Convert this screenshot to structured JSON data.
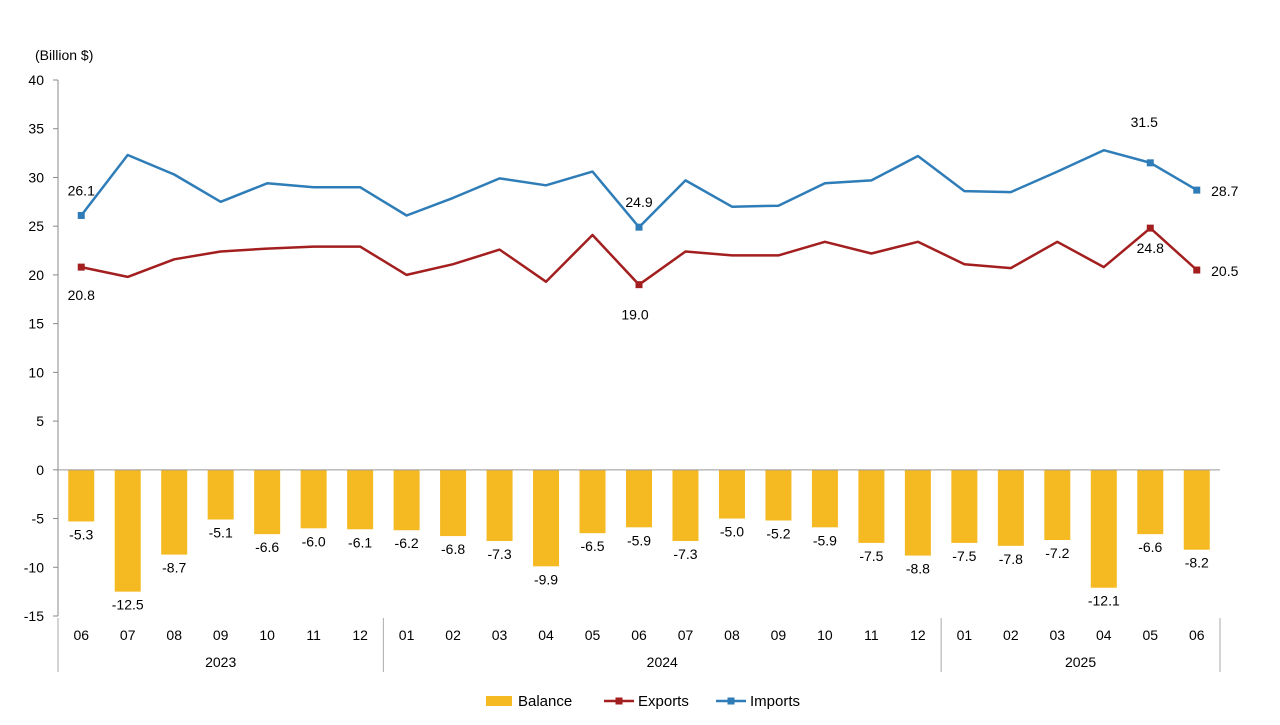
{
  "chart_data": {
    "type": "bar",
    "ylabel": "(Billion $)",
    "ylim": [
      -15,
      40
    ],
    "yticks": [
      40,
      35,
      30,
      25,
      20,
      15,
      10,
      5,
      0,
      -5,
      -10,
      -15
    ],
    "months": [
      "06",
      "07",
      "08",
      "09",
      "10",
      "11",
      "12",
      "01",
      "02",
      "03",
      "04",
      "05",
      "06",
      "07",
      "08",
      "09",
      "10",
      "11",
      "12",
      "01",
      "02",
      "03",
      "04",
      "05",
      "06"
    ],
    "years": [
      {
        "label": "2023",
        "start": 0,
        "end": 6
      },
      {
        "label": "2024",
        "start": 7,
        "end": 18
      },
      {
        "label": "2025",
        "start": 19,
        "end": 24
      }
    ],
    "series": [
      {
        "name": "Balance",
        "kind": "bar",
        "color": "#F5B922",
        "values": [
          -5.3,
          -12.5,
          -8.7,
          -5.1,
          -6.6,
          -6.0,
          -6.1,
          -6.2,
          -6.8,
          -7.3,
          -9.9,
          -6.5,
          -5.9,
          -7.3,
          -5.0,
          -5.2,
          -5.9,
          -7.5,
          -8.8,
          -7.5,
          -7.8,
          -7.2,
          -12.1,
          -6.6,
          -8.2
        ],
        "labels": [
          "-5.3",
          "-12.5",
          "-8.7",
          "-5.1",
          "-6.6",
          "-6.0",
          "-6.1",
          "-6.2",
          "-6.8",
          "-7.3",
          "-9.9",
          "-6.5",
          "-5.9",
          "-7.3",
          "-5.0",
          "-5.2",
          "-5.9",
          "-7.5",
          "-8.8",
          "-7.5",
          "-7.8",
          "-7.2",
          "-12.1",
          "-6.6",
          "-8.2"
        ]
      },
      {
        "name": "Exports",
        "kind": "line",
        "color": "#A31F1F",
        "values": [
          20.8,
          19.8,
          21.6,
          22.4,
          22.7,
          22.9,
          22.9,
          20.0,
          21.1,
          22.6,
          19.3,
          24.1,
          19.0,
          22.4,
          22.0,
          22.0,
          23.4,
          22.2,
          23.4,
          21.1,
          20.7,
          23.4,
          20.8,
          24.8,
          20.5
        ],
        "labels": {
          "0": "20.8",
          "12": "19.0",
          "23": "24.8",
          "24": "20.5"
        }
      },
      {
        "name": "Imports",
        "kind": "line",
        "color": "#2E7DB8",
        "values": [
          26.1,
          32.3,
          30.3,
          27.5,
          29.4,
          29.0,
          29.0,
          26.1,
          27.9,
          29.9,
          29.2,
          30.6,
          24.9,
          29.7,
          27.0,
          27.1,
          29.4,
          29.7,
          32.2,
          28.6,
          28.5,
          30.6,
          32.8,
          31.5,
          28.7
        ],
        "labels": {
          "0": "26.1",
          "12": "24.9",
          "23": "31.5",
          "24": "28.7"
        }
      }
    ],
    "legend": [
      "Balance",
      "Exports",
      "Imports"
    ],
    "legend_position": "bottom",
    "grid": false
  }
}
